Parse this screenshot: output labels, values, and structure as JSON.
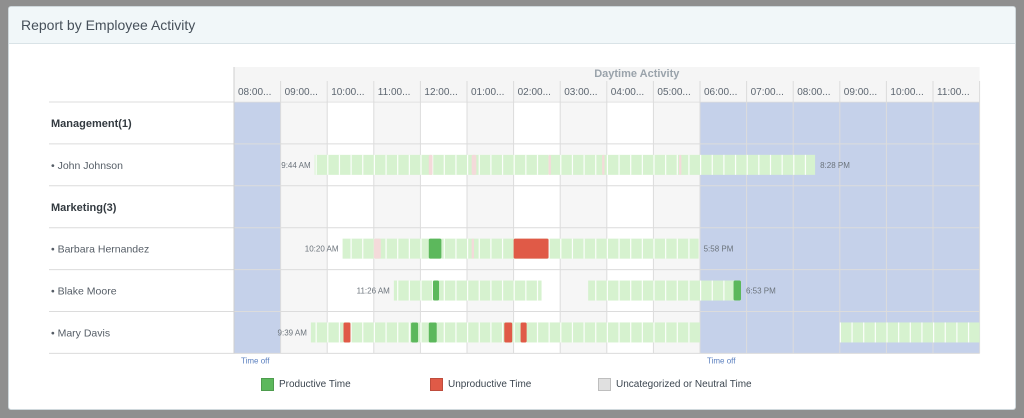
{
  "report": {
    "title": "Report by Employee Activity"
  },
  "colors": {
    "productive": "#5cb85c",
    "unproductive": "#e05a47",
    "neutral": "#e0e0e0",
    "activity_light": "#d6f2cf",
    "activity_pink": "#f4dada",
    "time_off": "#c5d1ea",
    "header_bg": "#f5f5f5"
  },
  "legend": [
    {
      "label": "Productive Time",
      "color_key": "productive"
    },
    {
      "label": "Unproductive Time",
      "color_key": "unproductive"
    },
    {
      "label": "Uncategorized or Neutral Time",
      "color_key": "neutral"
    }
  ],
  "chart_data": {
    "type": "timeline",
    "header": "Daytime Activity",
    "time_labels": [
      "08:00...",
      "09:00...",
      "10:00...",
      "11:00...",
      "12:00...",
      "01:00...",
      "02:00...",
      "03:00...",
      "04:00...",
      "05:00...",
      "06:00...",
      "07:00...",
      "08:00...",
      "09:00...",
      "10:00...",
      "11:00..."
    ],
    "axis_start_hour": 8,
    "time_off_periods": [
      {
        "start": 8.0,
        "end": 9.0,
        "label": "Time off"
      },
      {
        "start": 18.0,
        "end": 24.0,
        "label": "Time off"
      }
    ],
    "rows": [
      {
        "type": "group",
        "label": "Management(1)"
      },
      {
        "type": "employee",
        "name": "• John Johnson",
        "start_label": "9:44 AM",
        "end_label": "8:28 PM",
        "segments": [
          {
            "start": 9.73,
            "end": 18.0,
            "kind": "activity"
          },
          {
            "start": 18.0,
            "end": 20.47,
            "kind": "activity"
          }
        ],
        "marks": [
          {
            "start": 12.18,
            "end": 12.26,
            "kind": "pink"
          },
          {
            "start": 13.1,
            "end": 13.2,
            "kind": "pink"
          },
          {
            "start": 14.75,
            "end": 14.8,
            "kind": "pink"
          },
          {
            "start": 15.9,
            "end": 15.95,
            "kind": "pink"
          },
          {
            "start": 17.55,
            "end": 17.6,
            "kind": "pink"
          }
        ]
      },
      {
        "type": "group",
        "label": "Marketing(3)"
      },
      {
        "type": "employee",
        "name": "• Barbara Hernandez",
        "start_label": "10:20 AM",
        "end_label": "5:58 PM",
        "segments": [
          {
            "start": 10.33,
            "end": 17.97,
            "kind": "activity"
          }
        ],
        "marks": [
          {
            "start": 11.0,
            "end": 11.15,
            "kind": "pink"
          },
          {
            "start": 12.18,
            "end": 12.45,
            "kind": "productive"
          },
          {
            "start": 14.0,
            "end": 14.75,
            "kind": "unproductive"
          },
          {
            "start": 13.1,
            "end": 13.15,
            "kind": "pink"
          }
        ]
      },
      {
        "type": "employee",
        "name": "• Blake Moore",
        "start_label": "11:26 AM",
        "end_label": "6:53 PM",
        "segments": [
          {
            "start": 11.43,
            "end": 14.6,
            "kind": "activity"
          },
          {
            "start": 15.6,
            "end": 18.0,
            "kind": "activity"
          },
          {
            "start": 18.0,
            "end": 18.88,
            "kind": "activity"
          }
        ],
        "marks": [
          {
            "start": 12.27,
            "end": 12.4,
            "kind": "productive"
          },
          {
            "start": 18.72,
            "end": 18.88,
            "kind": "productive"
          }
        ]
      },
      {
        "type": "employee",
        "name": "• Mary Davis",
        "start_label": "9:39 AM",
        "end_label": "",
        "segments": [
          {
            "start": 9.65,
            "end": 18.0,
            "kind": "activity"
          },
          {
            "start": 21.0,
            "end": 24.0,
            "kind": "activity"
          }
        ],
        "marks": [
          {
            "start": 10.35,
            "end": 10.5,
            "kind": "unproductive"
          },
          {
            "start": 11.8,
            "end": 11.95,
            "kind": "productive"
          },
          {
            "start": 12.18,
            "end": 12.35,
            "kind": "productive"
          },
          {
            "start": 13.8,
            "end": 13.97,
            "kind": "unproductive"
          },
          {
            "start": 14.15,
            "end": 14.28,
            "kind": "unproductive"
          }
        ]
      }
    ]
  }
}
